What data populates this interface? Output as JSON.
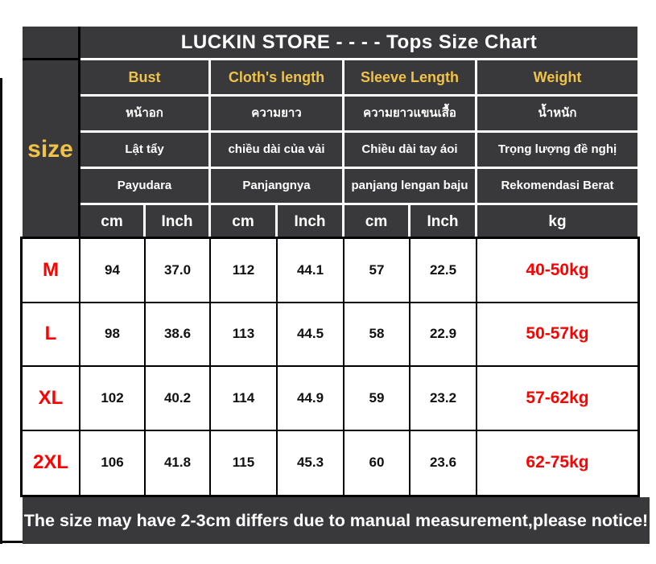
{
  "title": "LUCKIN STORE - - - -  Tops Size Chart",
  "size_label": "size",
  "colors": {
    "dark_bg": "#39393b",
    "accent_yellow": "#f0c348",
    "highlight_red": "#ff0000",
    "table_bg": "#ffffff",
    "border_black": "#000000"
  },
  "header": {
    "groups": [
      {
        "en": "Bust",
        "th": "หน้าอก",
        "vi": "Lật tẩy",
        "id": "Payudara",
        "units": [
          "cm",
          "Inch"
        ]
      },
      {
        "en": "Cloth's length",
        "th": "ความยาว",
        "vi": "chiều dài của vải",
        "id": "Panjangnya",
        "units": [
          "cm",
          "Inch"
        ]
      },
      {
        "en": "Sleeve Length",
        "th": "ความยาวแขนเสื้อ",
        "vi": "Chiều dài tay áoi",
        "id": "panjang lengan baju",
        "units": [
          "cm",
          "Inch"
        ]
      },
      {
        "en": "Weight",
        "th": "น้ำหนัก",
        "vi": "Trọng lượng đề nghị",
        "id": "Rekomendasi Berat",
        "units": [
          "kg"
        ]
      }
    ]
  },
  "footer_notice": "The size may have 2-3cm differs due to manual measurement,please notice!",
  "chart_data": {
    "type": "table",
    "title": "LUCKIN STORE - - - -  Tops Size Chart",
    "columns": [
      "size",
      "Bust cm",
      "Bust Inch",
      "Cloth's length cm",
      "Cloth's length Inch",
      "Sleeve Length cm",
      "Sleeve Length Inch",
      "Weight kg"
    ],
    "rows": [
      [
        "M",
        "94",
        "37.0",
        "112",
        "44.1",
        "57",
        "22.5",
        "40-50kg"
      ],
      [
        "L",
        "98",
        "38.6",
        "113",
        "44.5",
        "58",
        "22.9",
        "50-57kg"
      ],
      [
        "XL",
        "102",
        "40.2",
        "114",
        "44.9",
        "59",
        "23.2",
        "57-62kg"
      ],
      [
        "2XL",
        "106",
        "41.8",
        "115",
        "45.3",
        "60",
        "23.6",
        "62-75kg"
      ]
    ]
  }
}
